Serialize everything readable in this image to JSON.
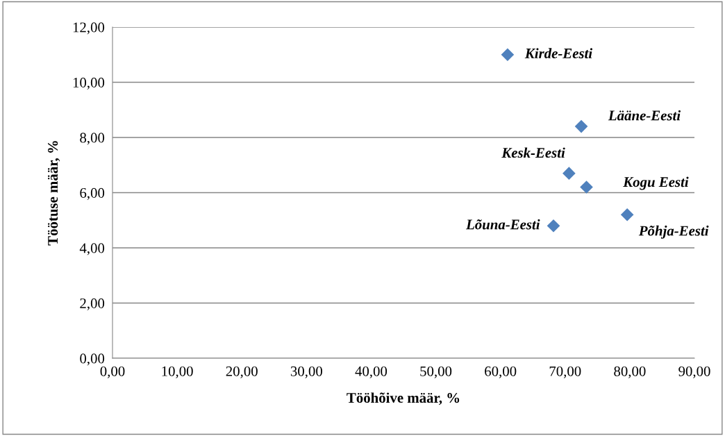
{
  "chart_data": {
    "type": "scatter",
    "xlabel": "Tööhõive määr, %",
    "ylabel": "Töötuse määr, %",
    "x": [
      61.1,
      72.5,
      70.6,
      73.3,
      79.6,
      68.2
    ],
    "series": [
      {
        "color": "#4f81bd",
        "values": [
          11.0,
          8.4,
          6.7,
          6.2,
          5.2,
          4.8
        ]
      }
    ],
    "marker": "diamond",
    "grid": "y",
    "xlim": [
      0,
      90
    ],
    "ylim": [
      0,
      12
    ],
    "xticks": [
      {
        "value": 0,
        "label": "0,00"
      },
      {
        "value": 10,
        "label": "10,00"
      },
      {
        "value": 20,
        "label": "20,00"
      },
      {
        "value": 30,
        "label": "30,00"
      },
      {
        "value": 40,
        "label": "40,00"
      },
      {
        "value": 50,
        "label": "50,00"
      },
      {
        "value": 60,
        "label": "60,00"
      },
      {
        "value": 70,
        "label": "70,00"
      },
      {
        "value": 80,
        "label": "80,00"
      },
      {
        "value": 90,
        "label": "90,00"
      }
    ],
    "yticks": [
      {
        "value": 0,
        "label": "0,00"
      },
      {
        "value": 2,
        "label": "2,00"
      },
      {
        "value": 4,
        "label": "4,00"
      },
      {
        "value": 6,
        "label": "6,00"
      },
      {
        "value": 8,
        "label": "8,00"
      },
      {
        "value": 10,
        "label": "10,00"
      },
      {
        "value": 12,
        "label": "12,00"
      }
    ],
    "annotations": [
      {
        "text": "Kirde-Eesti",
        "x": 61.1,
        "y": 11.0
      },
      {
        "text": "Lääne-Eesti",
        "x": 72.5,
        "y": 8.4
      },
      {
        "text": "Kesk-Eesti",
        "x": 70.6,
        "y": 6.7
      },
      {
        "text": "Kogu Eesti",
        "x": 73.3,
        "y": 6.2
      },
      {
        "text": "Põhja-Eesti",
        "x": 79.6,
        "y": 5.2
      },
      {
        "text": "Lõuna-Eesti",
        "x": 68.2,
        "y": 4.8
      }
    ]
  }
}
